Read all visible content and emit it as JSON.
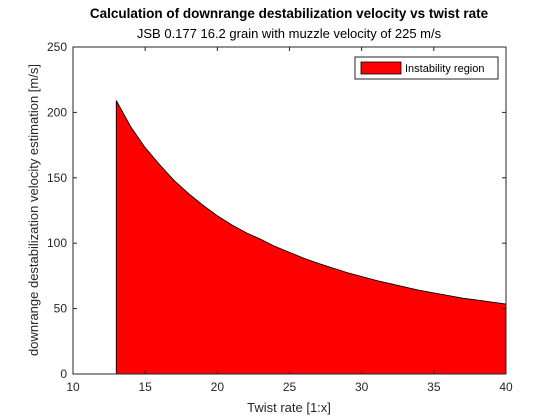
{
  "chart_data": {
    "type": "area",
    "title": "Calculation of downrange destabilization velocity vs twist rate",
    "subtitle": "JSB 0.177 16.2 grain with muzzle velocity of 225 m/s",
    "xlabel": "Twist rate [1:x]",
    "ylabel": "downrange destabilization velocity estimation [m/s]",
    "xlim": [
      10,
      40
    ],
    "ylim": [
      0,
      250
    ],
    "xticks": [
      10,
      15,
      20,
      25,
      30,
      35,
      40
    ],
    "yticks": [
      0,
      50,
      100,
      150,
      200,
      250
    ],
    "grid": false,
    "legend_position": "top-right",
    "series": [
      {
        "name": "Instability region",
        "color": "#ff0000",
        "x": [
          13,
          14,
          15,
          16,
          17,
          18,
          19,
          20,
          21,
          22,
          23,
          24,
          25,
          26,
          27,
          28,
          29,
          30,
          31,
          32,
          33,
          34,
          35,
          36,
          37,
          38,
          39,
          40
        ],
        "y": [
          209,
          189,
          173,
          160,
          148,
          138,
          129,
          121,
          114,
          108,
          103,
          97.5,
          93,
          88.5,
          84.5,
          81,
          77.5,
          74.5,
          71.5,
          69,
          66.5,
          64,
          62,
          60,
          58,
          56.5,
          55,
          53.5
        ]
      }
    ]
  }
}
